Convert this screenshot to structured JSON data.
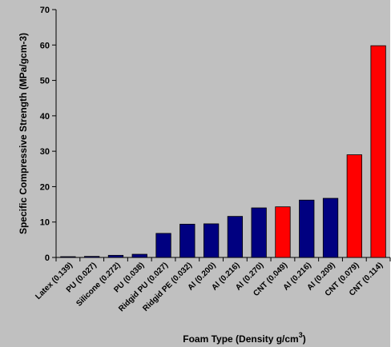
{
  "chart_data": {
    "type": "bar",
    "xlabel_main": "Foam Type (Density g/cm",
    "xlabel_sup": "3",
    "xlabel_tail": ")",
    "ylabel": "Specific Compressive Strength (MPa/gcm-3)",
    "ylim": [
      0,
      70
    ],
    "yticks": [
      "0",
      "10",
      "20",
      "30",
      "40",
      "50",
      "60",
      "70"
    ],
    "grid": false,
    "categories": [
      "Latex (0.139)",
      "PU (0.027)",
      "Silicone (0.272)",
      "PU (0.038)",
      "Ridgid PU (0.027)",
      "Ridgid PE (0.032)",
      "Al (0.200)",
      "Al (0.216)",
      "Al (0.270)",
      "CNT (0.049)",
      "Al (0.216)",
      "Al (0.209)",
      "CNT (0.079)",
      "CNT (0.114)"
    ],
    "values": [
      0.2,
      0.3,
      0.6,
      0.9,
      6.8,
      9.4,
      9.5,
      11.6,
      14.0,
      14.3,
      16.2,
      16.7,
      29.0,
      59.8
    ],
    "colors": [
      "#000080",
      "#000080",
      "#000080",
      "#000080",
      "#000080",
      "#000080",
      "#000080",
      "#000080",
      "#000080",
      "#ff0000",
      "#000080",
      "#000080",
      "#ff0000",
      "#ff0000"
    ],
    "plot_background": "#c0c0c0",
    "page_background": "#ffffff"
  }
}
